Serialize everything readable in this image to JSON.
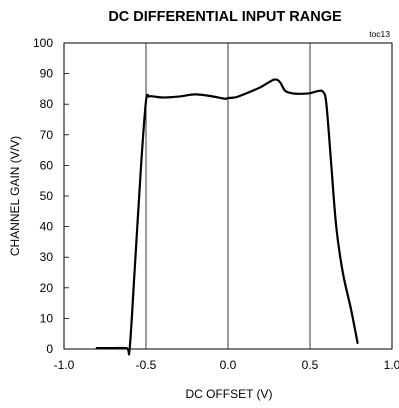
{
  "chart_data": {
    "type": "line",
    "title": "DC DIFFERENTIAL INPUT RANGE",
    "tag": "toc13",
    "xlabel": "DC OFFSET (V)",
    "ylabel": "CHANNEL GAIN (V/V)",
    "xlim": [
      -1.0,
      1.0
    ],
    "ylim": [
      0,
      100
    ],
    "xticks": [
      -1.0,
      -0.5,
      0.0,
      0.5,
      1.0
    ],
    "xtick_labels": [
      "-1.0",
      "-0.5",
      "0.0",
      "0.5",
      "1.0"
    ],
    "yticks": [
      0,
      10,
      20,
      30,
      40,
      50,
      60,
      70,
      80,
      90,
      100
    ],
    "ytick_labels": [
      "0",
      "10",
      "20",
      "30",
      "40",
      "50",
      "60",
      "70",
      "80",
      "90",
      "100"
    ],
    "grid": true,
    "line_color": "#000000",
    "series": [
      {
        "x": [
          -0.8,
          -0.74,
          -0.62,
          -0.6,
          -0.57,
          -0.53,
          -0.5,
          -0.48,
          -0.45,
          -0.4,
          -0.3,
          -0.2,
          -0.1,
          -0.02,
          0.0,
          0.05,
          0.1,
          0.15,
          0.2,
          0.25,
          0.28,
          0.3,
          0.32,
          0.35,
          0.4,
          0.45,
          0.5,
          0.55,
          0.58,
          0.6,
          0.63,
          0.66,
          0.7,
          0.75,
          0.79
        ],
        "y": [
          0.3,
          0.3,
          0.3,
          0,
          25,
          60,
          81,
          82.5,
          82.5,
          82.2,
          82.5,
          83.2,
          82.6,
          81.8,
          82.0,
          82.3,
          83.3,
          84.4,
          85.6,
          87.2,
          88.0,
          88.0,
          87.0,
          84.3,
          83.5,
          83.4,
          83.6,
          84.3,
          84.0,
          80,
          60,
          40,
          25,
          13,
          2
        ]
      }
    ]
  }
}
